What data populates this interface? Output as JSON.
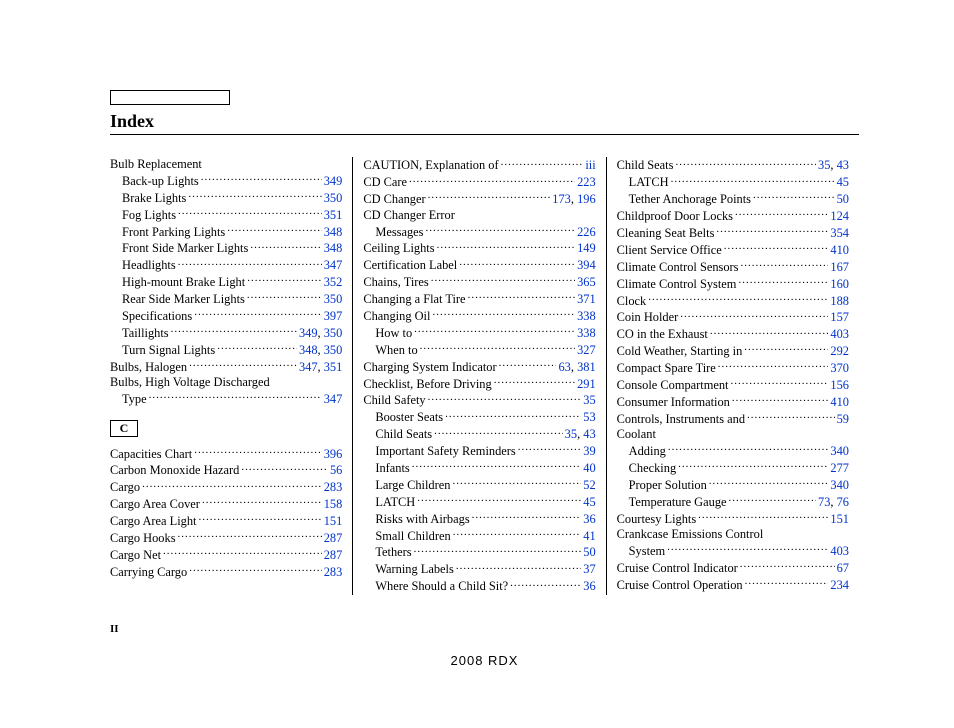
{
  "title": "Index",
  "footer": "2008  RDX",
  "pageNumber": "II",
  "columns": [
    {
      "groups": [
        {
          "type": "entries",
          "items": [
            {
              "label": "Bulb Replacement",
              "indent": 0,
              "pages": []
            },
            {
              "label": "Back-up Lights",
              "indent": 1,
              "pages": [
                "349"
              ]
            },
            {
              "label": "Brake Lights",
              "indent": 1,
              "pages": [
                "350"
              ]
            },
            {
              "label": "Fog Lights",
              "indent": 1,
              "pages": [
                "351"
              ]
            },
            {
              "label": "Front Parking Lights",
              "indent": 1,
              "pages": [
                "348"
              ]
            },
            {
              "label": "Front Side Marker Lights",
              "indent": 1,
              "pages": [
                "348"
              ]
            },
            {
              "label": "Headlights",
              "indent": 1,
              "pages": [
                "347"
              ]
            },
            {
              "label": "High-mount Brake Light",
              "indent": 1,
              "pages": [
                "352"
              ]
            },
            {
              "label": "Rear Side Marker Lights",
              "indent": 1,
              "pages": [
                "350"
              ]
            },
            {
              "label": "Specifications",
              "indent": 1,
              "pages": [
                "397"
              ]
            },
            {
              "label": "Taillights",
              "indent": 1,
              "pages": [
                "349",
                "350"
              ]
            },
            {
              "label": "Turn Signal Lights",
              "indent": 1,
              "pages": [
                "348",
                "350"
              ]
            },
            {
              "label": "Bulbs, Halogen",
              "indent": 0,
              "pages": [
                "347",
                "351"
              ]
            },
            {
              "label": "Bulbs, High Voltage Discharged",
              "indent": 0,
              "pages": []
            },
            {
              "label": "Type",
              "indent": 1,
              "pages": [
                "347"
              ]
            }
          ]
        },
        {
          "type": "letter",
          "value": "C"
        },
        {
          "type": "entries",
          "items": [
            {
              "label": "Capacities Chart",
              "indent": 0,
              "pages": [
                "396"
              ]
            },
            {
              "label": "Carbon Monoxide Hazard",
              "indent": 0,
              "pages": [
                "56"
              ]
            },
            {
              "label": "Cargo",
              "indent": 0,
              "pages": [
                "283"
              ]
            },
            {
              "label": "Cargo Area Cover",
              "indent": 0,
              "pages": [
                "158"
              ]
            },
            {
              "label": "Cargo Area Light",
              "indent": 0,
              "pages": [
                "151"
              ]
            },
            {
              "label": "Cargo Hooks",
              "indent": 0,
              "pages": [
                "287"
              ]
            },
            {
              "label": "Cargo Net",
              "indent": 0,
              "pages": [
                "287"
              ]
            },
            {
              "label": "Carrying Cargo",
              "indent": 0,
              "pages": [
                "283"
              ]
            }
          ]
        }
      ]
    },
    {
      "groups": [
        {
          "type": "entries",
          "items": [
            {
              "label": "CAUTION, Explanation of",
              "indent": 0,
              "pages": [
                "iii"
              ]
            },
            {
              "label": "CD Care",
              "indent": 0,
              "pages": [
                "223"
              ]
            },
            {
              "label": "CD Changer",
              "indent": 0,
              "pages": [
                "173",
                "196"
              ]
            },
            {
              "label": "CD Changer Error",
              "indent": 0,
              "pages": []
            },
            {
              "label": "Messages",
              "indent": 1,
              "pages": [
                "226"
              ]
            },
            {
              "label": "Ceiling Lights",
              "indent": 0,
              "pages": [
                "149"
              ]
            },
            {
              "label": "Certification Label",
              "indent": 0,
              "pages": [
                "394"
              ]
            },
            {
              "label": "Chains, Tires",
              "indent": 0,
              "pages": [
                "365"
              ]
            },
            {
              "label": "Changing a Flat Tire",
              "indent": 0,
              "pages": [
                "371"
              ]
            },
            {
              "label": "Changing Oil",
              "indent": 0,
              "pages": [
                "338"
              ]
            },
            {
              "label": "How to",
              "indent": 1,
              "pages": [
                "338"
              ]
            },
            {
              "label": "When to",
              "indent": 1,
              "pages": [
                "327"
              ]
            },
            {
              "label": "Charging System Indicator",
              "indent": 0,
              "pages": [
                "63",
                "381"
              ]
            },
            {
              "label": "Checklist, Before Driving",
              "indent": 0,
              "pages": [
                "291"
              ]
            },
            {
              "label": "Child Safety",
              "indent": 0,
              "pages": [
                "35"
              ]
            },
            {
              "label": "Booster Seats",
              "indent": 1,
              "pages": [
                "53"
              ]
            },
            {
              "label": "Child Seats",
              "indent": 1,
              "pages": [
                "35",
                "43"
              ]
            },
            {
              "label": "Important Safety Reminders",
              "indent": 1,
              "pages": [
                "39"
              ]
            },
            {
              "label": "Infants",
              "indent": 1,
              "pages": [
                "40"
              ]
            },
            {
              "label": "Large Children",
              "indent": 1,
              "pages": [
                "52"
              ]
            },
            {
              "label": "LATCH",
              "indent": 1,
              "pages": [
                "45"
              ]
            },
            {
              "label": "Risks with Airbags",
              "indent": 1,
              "pages": [
                "36"
              ]
            },
            {
              "label": "Small Children",
              "indent": 1,
              "pages": [
                "41"
              ]
            },
            {
              "label": "Tethers",
              "indent": 1,
              "pages": [
                "50"
              ]
            },
            {
              "label": "Warning Labels",
              "indent": 1,
              "pages": [
                "37"
              ]
            },
            {
              "label": "Where Should a Child Sit?",
              "indent": 1,
              "pages": [
                "36"
              ]
            }
          ]
        }
      ]
    },
    {
      "groups": [
        {
          "type": "entries",
          "items": [
            {
              "label": "Child Seats",
              "indent": 0,
              "pages": [
                "35",
                "43"
              ]
            },
            {
              "label": "LATCH",
              "indent": 1,
              "pages": [
                "45"
              ]
            },
            {
              "label": "Tether Anchorage Points",
              "indent": 1,
              "pages": [
                "50"
              ]
            },
            {
              "label": "Childproof Door Locks",
              "indent": 0,
              "pages": [
                "124"
              ]
            },
            {
              "label": "Cleaning Seat Belts",
              "indent": 0,
              "pages": [
                "354"
              ]
            },
            {
              "label": "Client Service Office",
              "indent": 0,
              "pages": [
                "410"
              ]
            },
            {
              "label": "Climate Control Sensors",
              "indent": 0,
              "pages": [
                "167"
              ]
            },
            {
              "label": "Climate Control System",
              "indent": 0,
              "pages": [
                "160"
              ]
            },
            {
              "label": "Clock",
              "indent": 0,
              "pages": [
                "188"
              ]
            },
            {
              "label": "Coin Holder",
              "indent": 0,
              "pages": [
                "157"
              ]
            },
            {
              "label": "CO in the Exhaust",
              "indent": 0,
              "pages": [
                "403"
              ]
            },
            {
              "label": "Cold Weather, Starting in",
              "indent": 0,
              "pages": [
                "292"
              ]
            },
            {
              "label": "Compact Spare Tire",
              "indent": 0,
              "pages": [
                "370"
              ]
            },
            {
              "label": "Console Compartment",
              "indent": 0,
              "pages": [
                "156"
              ]
            },
            {
              "label": "Consumer Information",
              "indent": 0,
              "pages": [
                "410"
              ]
            },
            {
              "label": "Controls, Instruments and",
              "indent": 0,
              "pages": [
                "59"
              ]
            },
            {
              "label": "Coolant",
              "indent": 0,
              "pages": []
            },
            {
              "label": "Adding",
              "indent": 1,
              "pages": [
                "340"
              ]
            },
            {
              "label": "Checking",
              "indent": 1,
              "pages": [
                "277"
              ]
            },
            {
              "label": "Proper Solution",
              "indent": 1,
              "pages": [
                "340"
              ]
            },
            {
              "label": "Temperature Gauge",
              "indent": 1,
              "pages": [
                "73",
                "76"
              ]
            },
            {
              "label": "Courtesy Lights",
              "indent": 0,
              "pages": [
                "151"
              ]
            },
            {
              "label": "Crankcase Emissions Control",
              "indent": 0,
              "pages": []
            },
            {
              "label": "System",
              "indent": 1,
              "pages": [
                "403"
              ]
            },
            {
              "label": "Cruise Control Indicator",
              "indent": 0,
              "pages": [
                "67"
              ]
            },
            {
              "label": "Cruise Control Operation",
              "indent": 0,
              "pages": [
                "234"
              ]
            }
          ]
        }
      ]
    }
  ]
}
